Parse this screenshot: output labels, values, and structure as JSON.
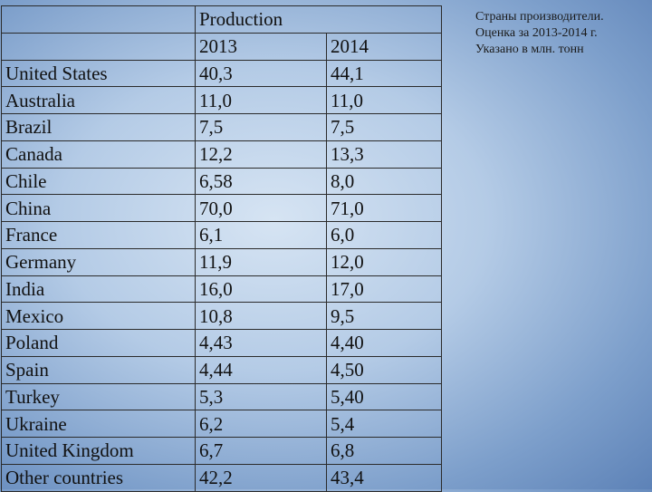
{
  "table": {
    "header": {
      "group_label": "Production",
      "year_1": "2013",
      "year_2": "2014"
    },
    "rows": [
      {
        "country": "United States",
        "y2013": "40,3",
        "y2014": "44,1"
      },
      {
        "country": "Australia",
        "y2013": "11,0",
        "y2014": "11,0"
      },
      {
        "country": "Brazil",
        "y2013": "7,5",
        "y2014": "7,5"
      },
      {
        "country": "Canada",
        "y2013": "12,2",
        "y2014": "13,3"
      },
      {
        "country": "Chile",
        "y2013": "6,58",
        "y2014": "8,0"
      },
      {
        "country": "China",
        "y2013": "70,0",
        "y2014": "71,0"
      },
      {
        "country": "France",
        "y2013": "6,1",
        "y2014": "6,0"
      },
      {
        "country": "Germany",
        "y2013": "11,9",
        "y2014": "12,0"
      },
      {
        "country": "India",
        "y2013": "16,0",
        "y2014": "17,0"
      },
      {
        "country": "Mexico",
        "y2013": "10,8",
        "y2014": "9,5"
      },
      {
        "country": "Poland",
        "y2013": "4,43",
        "y2014": "4,40"
      },
      {
        "country": "Spain",
        "y2013": "4,44",
        "y2014": "4,50"
      },
      {
        "country": "Turkey",
        "y2013": "5,3",
        "y2014": "5,40"
      },
      {
        "country": "Ukraine",
        "y2013": "6,2",
        "y2014": "5,4"
      },
      {
        "country": "United Kingdom",
        "y2013": "6,7",
        "y2014": "6,8"
      },
      {
        "country": "Other countries",
        "y2013": "42,2",
        "y2014": "43,4"
      }
    ]
  },
  "note": {
    "line_1": "Страны производители.",
    "line_2": "Оценка за 2013-2014 г.",
    "line_3": "Указано в млн. тонн"
  },
  "colors": {
    "background_center": "#d6e4f3",
    "background_edge": "#5d82b7",
    "border": "#2b2b2b",
    "text": "#111111"
  }
}
